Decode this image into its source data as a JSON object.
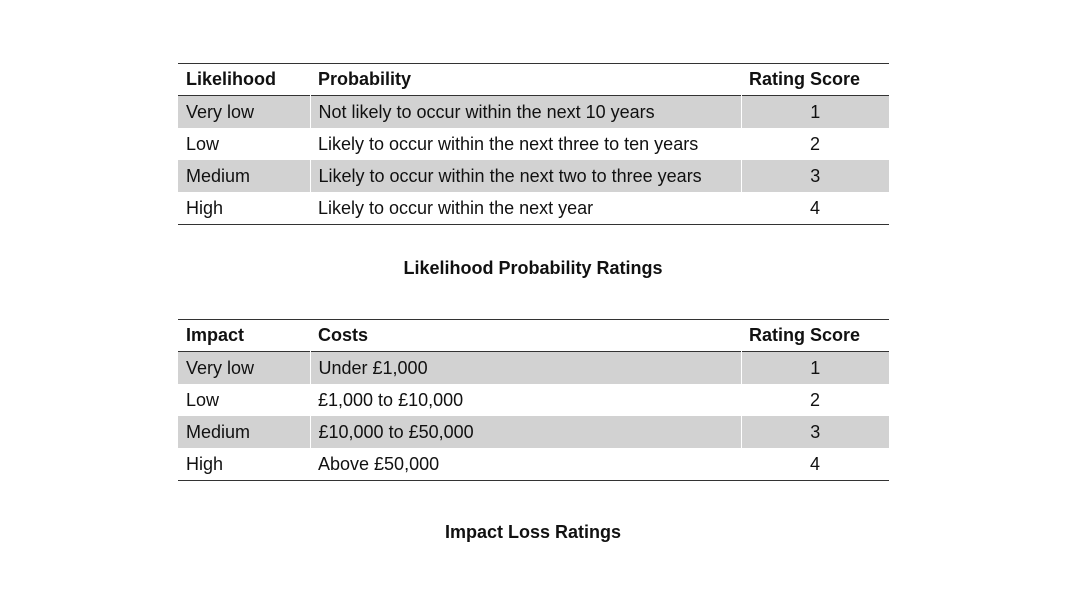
{
  "likelihood_table": {
    "headers": [
      "Likelihood",
      "Probability",
      "Rating Score"
    ],
    "rows": [
      [
        "Very low",
        "Not likely to occur within the next 10 years",
        "1"
      ],
      [
        "Low",
        "Likely to occur within the next three to ten years",
        "2"
      ],
      [
        "Medium",
        "Likely to occur within the next two to three years",
        "3"
      ],
      [
        "High",
        "Likely to occur within the next year",
        "4"
      ]
    ],
    "caption": "Likelihood Probability Ratings"
  },
  "impact_table": {
    "headers": [
      "Impact",
      "Costs",
      "Rating Score"
    ],
    "rows": [
      [
        "Very low",
        "Under £1,000",
        "1"
      ],
      [
        "Low",
        "£1,000 to £10,000",
        "2"
      ],
      [
        "Medium",
        "£10,000 to £50,000",
        "3"
      ],
      [
        "High",
        "Above £50,000",
        "4"
      ]
    ],
    "caption": "Impact Loss Ratings"
  },
  "colors": {
    "row_shading": "#d2d2d2",
    "rule": "#333333"
  }
}
